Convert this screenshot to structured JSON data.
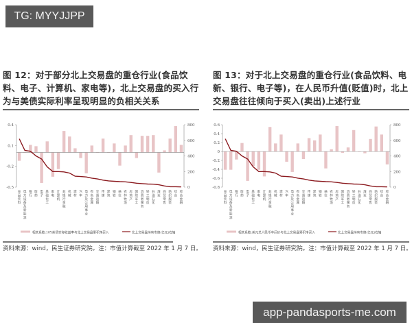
{
  "watermarks": {
    "top": "TG: MYYJJPP",
    "bottom": "app-pandasports-me.com"
  },
  "panels": [
    {
      "title": "图 12：对于部分北上交易盘的重仓行业(食品饮料、电子、计算机、家电等)，北上交易盘的买入行为与美债实际利率呈现明显的负相关关系",
      "source": "资料来源：wind，民生证券研究院。注：市值计算截至 2022 年 1 月 7 日。"
    },
    {
      "title": "图 13：对于北上交易盘的重仓行业(食品饮料、电新、银行、电子等)，在人民币升值(贬值)时，北上交易盘往往倾向于买入(卖出)上述行业",
      "source": "资料来源：wind，民生证券研究院。注：市值计算截至 2022 年 1 月 7 日。"
    }
  ],
  "colors": {
    "bar": "#e8c4c6",
    "line": "#8b1a1f",
    "axis": "#888888"
  },
  "chart_data": [
    {
      "type": "bar",
      "title": "图 12",
      "categories": [
        "食品饮料",
        "电力设备及新能源",
        "银行",
        "医药",
        "电子",
        "基础化工",
        "家电",
        "计算机",
        "非银行金融",
        "机械",
        "建材",
        "汽车",
        "电力及公用事业",
        "有色金属",
        "交通运输",
        "传媒",
        "建筑",
        "钢铁",
        "通信",
        "农林牧渔",
        "房地产",
        "国防军工",
        "消费者服务",
        "轻工制造",
        "石油石化",
        "煤炭",
        "商贸零售",
        "纺织服装",
        "综合",
        "综合金融"
      ],
      "series": [
        {
          "name": "相关系数:10Y美债实际收益率与北上交易盘累积净买入",
          "type": "bar",
          "axis": "left",
          "values": [
            -0.12,
            0.0,
            0.11,
            0.09,
            -0.44,
            0.16,
            -0.35,
            -0.24,
            0.31,
            0.23,
            0.06,
            -0.08,
            -0.3,
            0.1,
            0.0,
            0.2,
            0.0,
            0.13,
            -0.19,
            0.1,
            0.25,
            -0.08,
            0.24,
            0.24,
            0.25,
            -0.29,
            0.03,
            0.2,
            0.38,
            0.11
          ]
        },
        {
          "name": "北上交易盘持有市值(亿元)右轴",
          "type": "line",
          "axis": "right",
          "values": [
            620,
            470,
            460,
            400,
            360,
            260,
            200,
            200,
            195,
            180,
            140,
            135,
            130,
            115,
            105,
            90,
            80,
            75,
            70,
            68,
            60,
            50,
            45,
            40,
            38,
            30,
            15,
            5,
            5,
            3
          ]
        }
      ],
      "left_axis": {
        "ticks": [
          "0.4",
          "0.1",
          "-0.2",
          "-0.5"
        ],
        "range": [
          -0.5,
          0.4
        ]
      },
      "right_axis": {
        "ticks": [
          "800",
          "600",
          "400",
          "200",
          "0"
        ],
        "range": [
          0,
          800
        ]
      },
      "legend": [
        "相关系数:10Y美债实际收益率与北上交易盘累积净买入",
        "北上交易盘持有市值(亿元)右轴"
      ],
      "legend_position": "bottom"
    },
    {
      "type": "bar",
      "title": "图 13",
      "categories": [
        "食品饮料",
        "电力设备及新能源",
        "银行",
        "医药",
        "电子",
        "基础化工",
        "家电",
        "计算机",
        "非银行金融",
        "机械",
        "建材",
        "汽车",
        "电力及公用事业",
        "有色金属",
        "交通运输",
        "传媒",
        "建筑",
        "钢铁",
        "通信",
        "农林牧渔",
        "房地产",
        "国防军工",
        "消费者服务",
        "轻工制造",
        "石油石化",
        "煤炭",
        "商贸零售",
        "纺织服装",
        "综合",
        "综合金融"
      ],
      "series": [
        {
          "name": "相关系数:美元兑人民币中间价与北上交易盘累积净买入",
          "type": "bar",
          "axis": "left",
          "values": [
            -0.41,
            -0.41,
            -0.18,
            0.19,
            -0.66,
            -0.33,
            -0.41,
            -0.56,
            0.55,
            0.18,
            0.38,
            -0.23,
            -0.46,
            0.18,
            -0.17,
            0.3,
            0.25,
            0.38,
            -0.38,
            0.05,
            0.57,
            -0.03,
            0.09,
            0.48,
            0.0,
            -0.04,
            0.28,
            0.56,
            0.38,
            -0.29
          ]
        },
        {
          "name": "北上交易盘持有市值(亿元)右轴",
          "type": "line",
          "axis": "right",
          "values": [
            620,
            470,
            460,
            400,
            360,
            260,
            200,
            200,
            195,
            180,
            140,
            135,
            130,
            115,
            105,
            90,
            80,
            75,
            70,
            68,
            60,
            50,
            45,
            40,
            38,
            30,
            15,
            5,
            5,
            3
          ]
        }
      ],
      "left_axis": {
        "ticks": [
          "0.6",
          "0.4",
          "0.2",
          "0",
          "-0.2",
          "-0.4",
          "-0.6",
          "-0.8"
        ],
        "range": [
          -0.8,
          0.6
        ]
      },
      "right_axis": {
        "ticks": [
          "800",
          "600",
          "400",
          "200",
          "0"
        ],
        "range": [
          0,
          800
        ]
      },
      "legend": [
        "相关系数:美元兑人民币中间价与北上交易盘累积净买入",
        "北上交易盘持有市值(亿元)右轴"
      ],
      "legend_position": "bottom"
    }
  ]
}
